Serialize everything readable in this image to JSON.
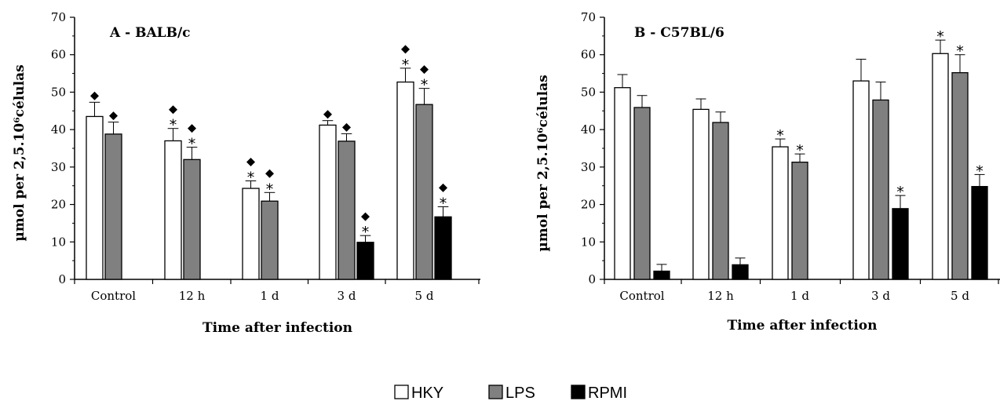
{
  "legend": [
    {
      "name": "HKY",
      "color": "#ffffff"
    },
    {
      "name": "LPS",
      "color": "#808080"
    },
    {
      "name": "RPMI",
      "color": "#000000"
    }
  ],
  "chart_data": [
    {
      "type": "bar",
      "title": "A - BALB/c",
      "xlabel": "Time after infection",
      "ylabel": "µmol per 2,5.10⁶células",
      "ylim": [
        0,
        70
      ],
      "yticks": [
        0,
        10,
        20,
        30,
        40,
        50,
        60,
        70
      ],
      "categories": [
        "Control",
        "12 h",
        "1 d",
        "3 d",
        "5 d"
      ],
      "series": [
        {
          "name": "HKY",
          "values": [
            43.5,
            37,
            24.3,
            41.2,
            52.7
          ],
          "errors": [
            3.8,
            3.3,
            2.0,
            1.2,
            3.7
          ],
          "marks": [
            [
              "diamond"
            ],
            [
              "star",
              "diamond"
            ],
            [
              "star",
              "diamond"
            ],
            [
              "diamond"
            ],
            [
              "star",
              "diamond"
            ]
          ]
        },
        {
          "name": "LPS",
          "values": [
            38.8,
            32,
            20.9,
            36.9,
            46.7
          ],
          "errors": [
            3.2,
            3.3,
            2.3,
            2.0,
            4.3
          ],
          "marks": [
            [
              "diamond"
            ],
            [
              "star",
              "diamond"
            ],
            [
              "star",
              "diamond"
            ],
            [
              "diamond"
            ],
            [
              "star",
              "diamond"
            ]
          ]
        },
        {
          "name": "RPMI",
          "values": [
            null,
            null,
            null,
            9.9,
            16.7
          ],
          "errors": [
            null,
            null,
            null,
            1.8,
            2.7
          ],
          "marks": [
            [],
            [],
            [],
            [
              "star",
              "diamond"
            ],
            [
              "star",
              "diamond"
            ]
          ]
        }
      ]
    },
    {
      "type": "bar",
      "title": "B - C57BL/6",
      "xlabel": "Time after infection",
      "ylabel": "µmol per 2,5.10⁶células",
      "ylim": [
        0,
        70
      ],
      "yticks": [
        0,
        10,
        20,
        30,
        40,
        50,
        60,
        70
      ],
      "categories": [
        "Control",
        "12 h",
        "1 d",
        "3 d",
        "5 d"
      ],
      "series": [
        {
          "name": "HKY",
          "values": [
            51.2,
            45.4,
            35.4,
            53.0,
            60.3
          ],
          "errors": [
            3.5,
            2.8,
            2.1,
            5.8,
            3.6
          ],
          "marks": [
            [],
            [],
            [
              "star"
            ],
            [],
            [
              "star"
            ]
          ]
        },
        {
          "name": "LPS",
          "values": [
            45.9,
            41.9,
            31.3,
            47.9,
            55.2
          ],
          "errors": [
            3.2,
            2.8,
            2.2,
            4.8,
            4.8
          ],
          "marks": [
            [],
            [],
            [
              "star"
            ],
            [],
            [
              "star"
            ]
          ]
        },
        {
          "name": "RPMI",
          "values": [
            2.2,
            3.9,
            null,
            18.9,
            24.8
          ],
          "errors": [
            1.8,
            1.8,
            null,
            3.5,
            3.2
          ],
          "marks": [
            [],
            [],
            [],
            [
              "star"
            ],
            [
              "star"
            ]
          ]
        }
      ]
    }
  ]
}
